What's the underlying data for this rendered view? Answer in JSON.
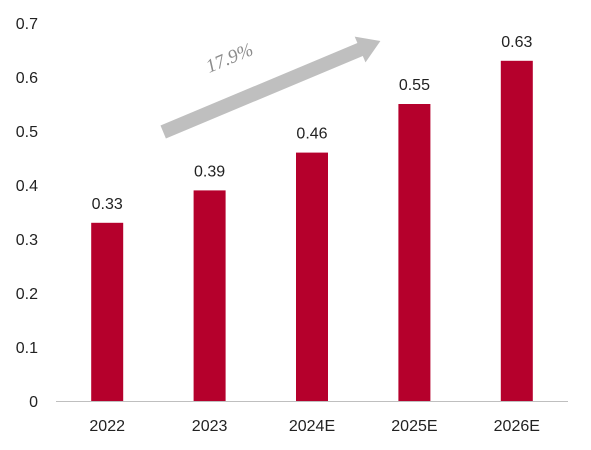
{
  "chart_data": {
    "type": "bar",
    "title": "",
    "xlabel": "",
    "ylabel": "",
    "categories": [
      "2022",
      "2023",
      "2024E",
      "2025E",
      "2026E"
    ],
    "values": [
      0.33,
      0.39,
      0.46,
      0.55,
      0.63
    ],
    "data_labels": [
      "0.33",
      "0.39",
      "0.46",
      "0.55",
      "0.63"
    ],
    "ylim": [
      0,
      0.7
    ],
    "y_ticks": [
      0,
      0.1,
      0.2,
      0.3,
      0.4,
      0.5,
      0.6,
      0.7
    ],
    "y_tick_labels": [
      "0",
      "0.1",
      "0.2",
      "0.3",
      "0.4",
      "0.5",
      "0.6",
      "0.7"
    ],
    "grid": false,
    "legend": "none",
    "annotation": {
      "text": "17.9%",
      "type": "growth-arrow",
      "from_category": "2022",
      "to_category": "2025E"
    },
    "colors": {
      "bar": "#B5002C",
      "arrow": "#BFBFBF",
      "annotation_text": "#8C8C8C",
      "axis": "#BFBFBF"
    }
  }
}
